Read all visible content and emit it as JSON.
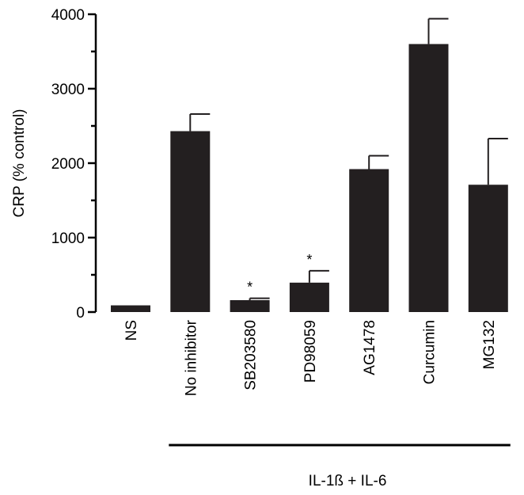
{
  "chart_data": {
    "type": "bar",
    "ylabel": "CRP (% control)",
    "ylim": [
      0,
      4000
    ],
    "yticks": [
      0,
      1000,
      2000,
      3000,
      4000
    ],
    "yticks_minor_step": 500,
    "categories": [
      "NS",
      "No inhibitor",
      "SB203580",
      "PD98059",
      "AG1478",
      "Curcumin",
      "MG132"
    ],
    "values": [
      90,
      2430,
      160,
      395,
      1920,
      3600,
      1710
    ],
    "error_upper": [
      0,
      230,
      25,
      160,
      180,
      340,
      620
    ],
    "significance": [
      "",
      "",
      "*",
      "*",
      "",
      "",
      ""
    ],
    "bar_color": "#231f20",
    "group_label": "IL-1ß + IL-6",
    "group_start_category": "No inhibitor",
    "grid": false
  }
}
